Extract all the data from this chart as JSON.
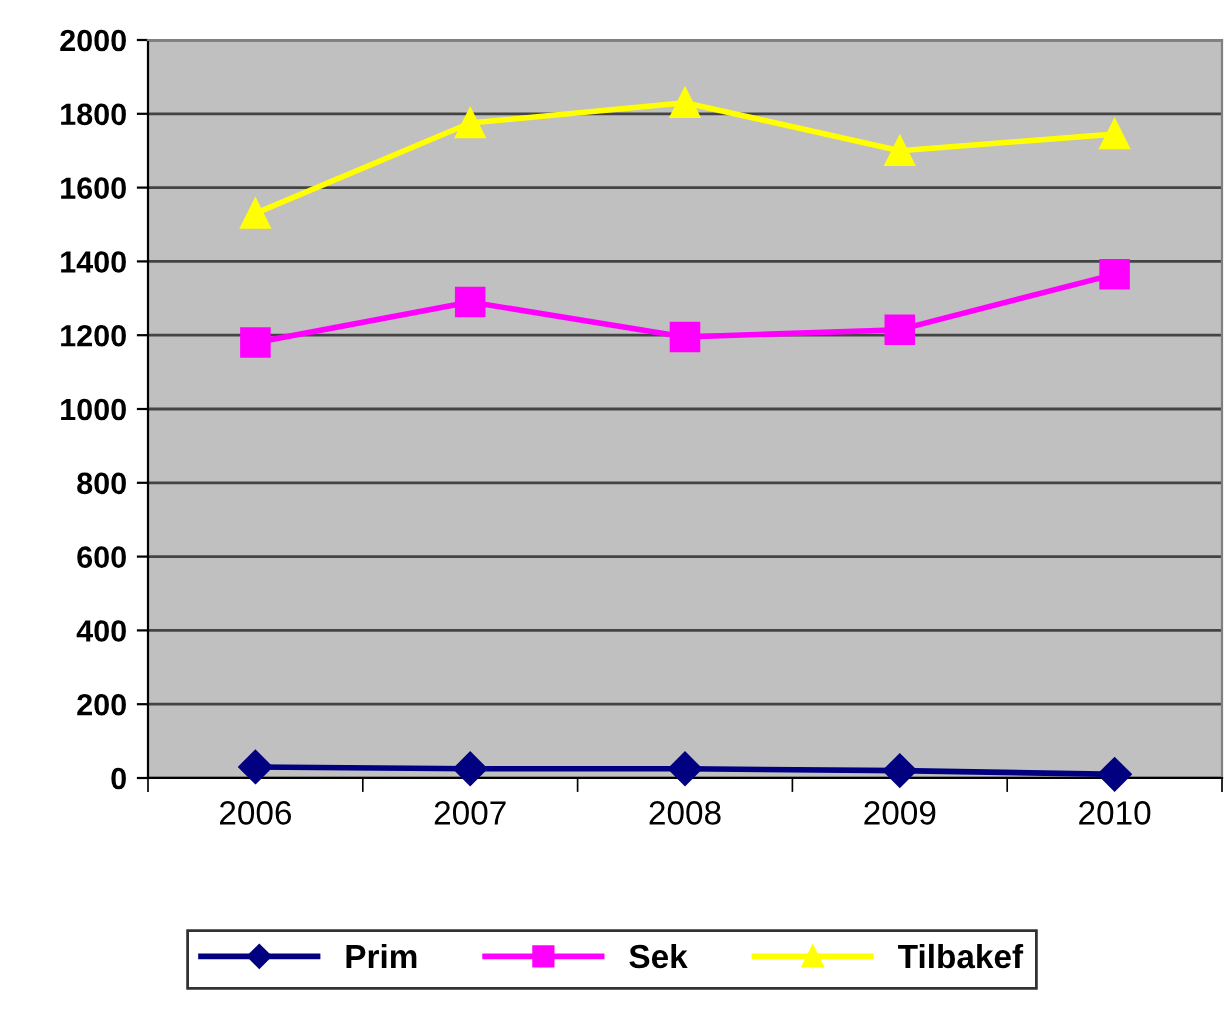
{
  "chart_data": {
    "type": "line",
    "categories": [
      "2006",
      "2007",
      "2008",
      "2009",
      "2010"
    ],
    "series": [
      {
        "name": "Prim",
        "color": "#000080",
        "marker": "diamond",
        "values": [
          30,
          25,
          25,
          20,
          10
        ]
      },
      {
        "name": "Sek",
        "color": "#ff00ff",
        "marker": "square",
        "values": [
          1180,
          1290,
          1195,
          1215,
          1365
        ]
      },
      {
        "name": "Tilbakef",
        "color": "#ffff00",
        "marker": "triangle",
        "values": [
          1530,
          1775,
          1830,
          1700,
          1745
        ]
      }
    ],
    "ylim": [
      0,
      2000
    ],
    "yticks": [
      0,
      200,
      400,
      600,
      800,
      1000,
      1200,
      1400,
      1600,
      1800,
      2000
    ],
    "grid": "y",
    "legend": "bottom"
  }
}
